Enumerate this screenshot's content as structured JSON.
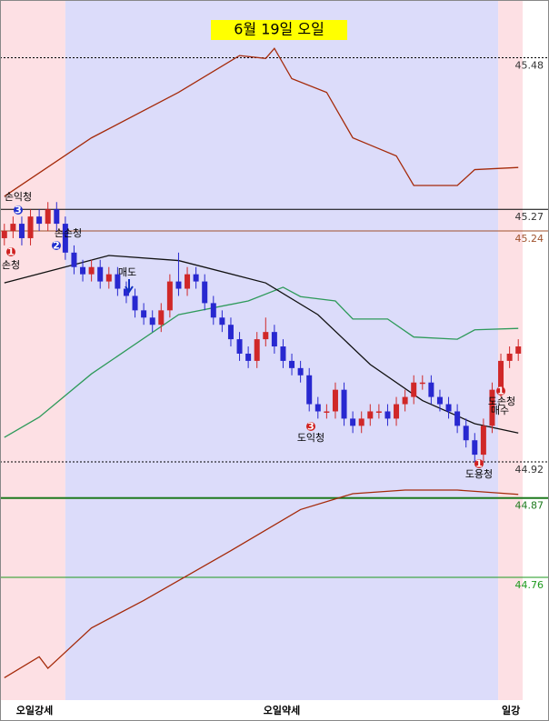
{
  "chart_data": {
    "type": "candlestick",
    "title": "6월 19일 오일",
    "xlim": [
      -0.5,
      59.5
    ],
    "ylim": [
      44.59,
      45.56
    ],
    "up_color": "#d02828",
    "down_color": "#2828d0",
    "open": [
      45.23,
      45.24,
      45.25,
      45.23,
      45.26,
      45.25,
      45.27,
      45.25,
      45.21,
      45.19,
      45.18,
      45.19,
      45.17,
      45.18,
      45.16,
      45.15,
      45.13,
      45.12,
      45.11,
      45.13,
      45.17,
      45.16,
      45.18,
      45.17,
      45.14,
      45.12,
      45.11,
      45.09,
      45.07,
      45.06,
      45.09,
      45.1,
      45.08,
      45.06,
      45.05,
      45.04,
      45.0,
      44.99,
      44.99,
      45.02,
      44.98,
      44.97,
      44.98,
      44.99,
      44.99,
      44.98,
      45.0,
      45.01,
      45.03,
      45.03,
      45.01,
      45.0,
      44.99,
      44.97,
      44.95,
      44.93,
      44.97,
      45.02,
      45.06,
      45.07
    ],
    "close": [
      45.24,
      45.25,
      45.23,
      45.26,
      45.25,
      45.27,
      45.25,
      45.21,
      45.19,
      45.18,
      45.19,
      45.17,
      45.18,
      45.16,
      45.15,
      45.13,
      45.12,
      45.11,
      45.13,
      45.17,
      45.16,
      45.18,
      45.17,
      45.14,
      45.12,
      45.11,
      45.09,
      45.07,
      45.06,
      45.09,
      45.1,
      45.08,
      45.06,
      45.05,
      45.04,
      45.0,
      44.99,
      44.99,
      45.02,
      44.98,
      44.97,
      44.98,
      44.99,
      44.99,
      44.98,
      45.0,
      45.01,
      45.03,
      45.03,
      45.01,
      45.0,
      44.99,
      44.97,
      44.95,
      44.93,
      44.97,
      45.02,
      45.06,
      45.07,
      45.08
    ],
    "high": [
      45.25,
      45.26,
      45.26,
      45.27,
      45.27,
      45.28,
      45.28,
      45.26,
      45.22,
      45.2,
      45.2,
      45.2,
      45.19,
      45.19,
      45.17,
      45.16,
      45.14,
      45.13,
      45.14,
      45.18,
      45.21,
      45.19,
      45.19,
      45.18,
      45.15,
      45.13,
      45.12,
      45.1,
      45.08,
      45.1,
      45.12,
      45.11,
      45.09,
      45.07,
      45.06,
      45.05,
      45.01,
      45.0,
      45.03,
      45.03,
      44.99,
      44.99,
      45.0,
      45.0,
      45.0,
      45.01,
      45.02,
      45.04,
      45.04,
      45.04,
      45.02,
      45.01,
      45.0,
      44.98,
      44.96,
      44.98,
      45.03,
      45.07,
      45.08,
      45.09
    ],
    "low": [
      45.22,
      45.23,
      45.22,
      45.22,
      45.24,
      45.24,
      45.24,
      45.2,
      45.18,
      45.17,
      45.17,
      45.16,
      45.16,
      45.15,
      45.14,
      45.12,
      45.11,
      45.1,
      45.1,
      45.12,
      45.15,
      45.15,
      45.16,
      45.13,
      45.11,
      45.1,
      45.08,
      45.06,
      45.05,
      45.05,
      45.08,
      45.07,
      45.05,
      45.04,
      45.03,
      44.99,
      44.98,
      44.98,
      44.98,
      44.97,
      44.96,
      44.96,
      44.97,
      44.98,
      44.97,
      44.97,
      44.99,
      45.0,
      45.02,
      45.0,
      44.99,
      44.98,
      44.96,
      44.94,
      44.92,
      44.92,
      44.96,
      45.01,
      45.05,
      45.06
    ],
    "lines": [
      {
        "color": "#a52a0a",
        "x": [
          0,
          10,
          20,
          27,
          30,
          31,
          33,
          37,
          40,
          42,
          45,
          47,
          52,
          54,
          59
        ],
        "values": [
          45.288,
          45.369,
          45.432,
          45.483,
          45.479,
          45.493,
          45.451,
          45.432,
          45.369,
          45.359,
          45.344,
          45.303,
          45.303,
          45.325,
          45.328
        ]
      },
      {
        "color": "#2e9a5a",
        "x": [
          0,
          4,
          10,
          20,
          28,
          32,
          34,
          38,
          40,
          44,
          47,
          52,
          54,
          59
        ],
        "values": [
          44.954,
          44.982,
          45.042,
          45.124,
          45.143,
          45.162,
          45.149,
          45.143,
          45.118,
          45.118,
          45.093,
          45.09,
          45.103,
          45.105
        ]
      },
      {
        "color": "#111111",
        "x": [
          0,
          6,
          12,
          20,
          30,
          36,
          42,
          48,
          54,
          59
        ],
        "values": [
          45.168,
          45.187,
          45.206,
          45.199,
          45.168,
          45.124,
          45.055,
          45.005,
          44.973,
          44.96
        ]
      },
      {
        "color": "#a52a0a",
        "x": [
          0,
          4,
          5,
          10,
          16,
          26,
          34,
          40,
          46,
          52,
          59
        ],
        "values": [
          44.621,
          44.65,
          44.634,
          44.69,
          44.728,
          44.797,
          44.854,
          44.876,
          44.881,
          44.881,
          44.875
        ]
      }
    ],
    "levels": [
      {
        "value": 45.48,
        "color": "#000000",
        "style": "dotted"
      },
      {
        "value": 45.27,
        "color": "#000000",
        "style": "solid"
      },
      {
        "value": 45.24,
        "color": "#a0522d",
        "style": "solid"
      },
      {
        "value": 44.92,
        "color": "#000000",
        "style": "dotted"
      },
      {
        "value": 44.87,
        "color": "#1e7a1e",
        "style": "thick"
      },
      {
        "value": 44.76,
        "color": "#1e9a1e",
        "style": "solid"
      }
    ],
    "regimes": [
      {
        "label": "오일강세",
        "color": "#fde0e4",
        "start": -0.5
      },
      {
        "label": "오일약세",
        "color": "#dcdcfa",
        "start": 7
      },
      {
        "label": "일강",
        "color": "#fde0e4",
        "start": 56.7
      }
    ],
    "annotations": [
      {
        "text": "손익청",
        "marker": "3",
        "marker_color": "#2030d0"
      },
      {
        "text": "손청",
        "marker": "1",
        "marker_color": "#d02020"
      },
      {
        "text": "손손청",
        "marker": "2",
        "marker_color": "#2030d0"
      },
      {
        "text": "매도"
      },
      {
        "text": "도익청",
        "marker": "3",
        "marker_color": "#d02020"
      },
      {
        "text": "도용청",
        "marker": "1",
        "marker_color": "#d02020"
      },
      {
        "text": "도손청",
        "marker": "1",
        "marker_color": "#d02020"
      },
      {
        "text": "매수"
      }
    ]
  }
}
